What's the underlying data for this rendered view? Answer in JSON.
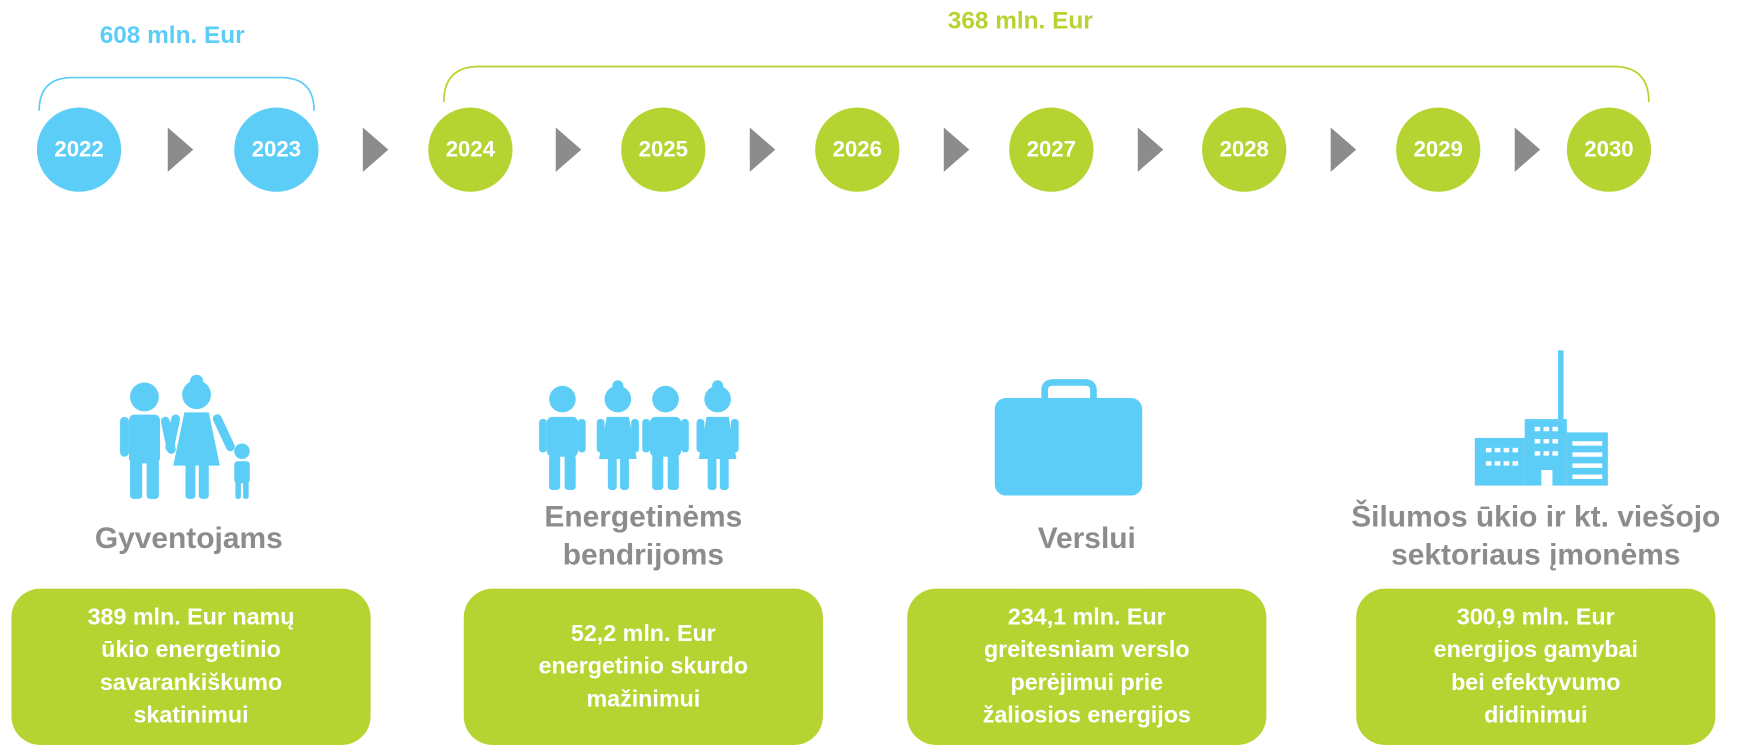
{
  "brackets": [
    {
      "label": "608 mln. Eur"
    },
    {
      "label": "368 mln. Eur"
    }
  ],
  "years": [
    "2022",
    "2023",
    "2024",
    "2025",
    "2026",
    "2027",
    "2028",
    "2029",
    "2030"
  ],
  "categories": [
    {
      "title": [
        "Gyventojams"
      ],
      "text": [
        "389 mln. Eur  namų",
        "ūkio energetinio",
        "savarankiškumo",
        "skatinimui"
      ]
    },
    {
      "title": [
        "Energetinėms",
        "bendrijoms"
      ],
      "text": [
        "52,2 mln. Eur",
        "energetinio skurdo",
        "mažinimui"
      ]
    },
    {
      "title": [
        "Verslui"
      ],
      "text": [
        "234,1 mln. Eur",
        "greitesniam verslo",
        "perėjimui prie",
        "žaliosios energijos"
      ]
    },
    {
      "title": [
        "Šilumos ūkio ir kt. viešojo",
        "sektoriaus įmonėms"
      ],
      "text": [
        "300,9 mln. Eur",
        "energijos gamybai",
        "bei efektyvumo",
        "didinimui"
      ]
    }
  ]
}
